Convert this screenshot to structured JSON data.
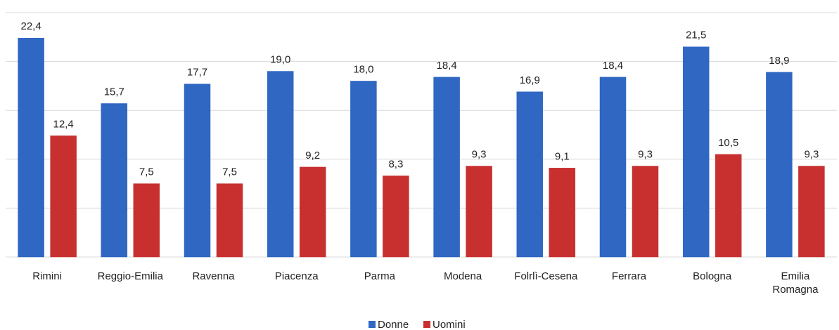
{
  "chart_data": {
    "type": "bar",
    "categories": [
      "Rimini",
      "Reggio-Emilia",
      "Ravenna",
      "Piacenza",
      "Parma",
      "Modena",
      "Folrlì-Cesena",
      "Ferrara",
      "Bologna",
      "Emilia Romagna"
    ],
    "series": [
      {
        "name": "Donne",
        "color": "#2f67c2",
        "values": [
          22.4,
          15.7,
          17.7,
          19.0,
          18.0,
          18.4,
          16.9,
          18.4,
          21.5,
          18.9
        ],
        "value_labels": [
          "22,4",
          "15,7",
          "17,7",
          "19,0",
          "18,0",
          "18,4",
          "16,9",
          "18,4",
          "21,5",
          "18,9"
        ]
      },
      {
        "name": "Uomini",
        "color": "#c83030",
        "values": [
          12.4,
          7.5,
          7.5,
          9.2,
          8.3,
          9.3,
          9.1,
          9.3,
          10.5,
          9.3
        ],
        "value_labels": [
          "12,4",
          "7,5",
          "7,5",
          "9,2",
          "8,3",
          "9,3",
          "9,1",
          "9,3",
          "10,5",
          "9,3"
        ]
      }
    ],
    "ylim": [
      0,
      25
    ],
    "yticks": [
      0,
      5,
      10,
      15,
      20,
      25
    ],
    "grid": true,
    "legend": "bottom"
  }
}
